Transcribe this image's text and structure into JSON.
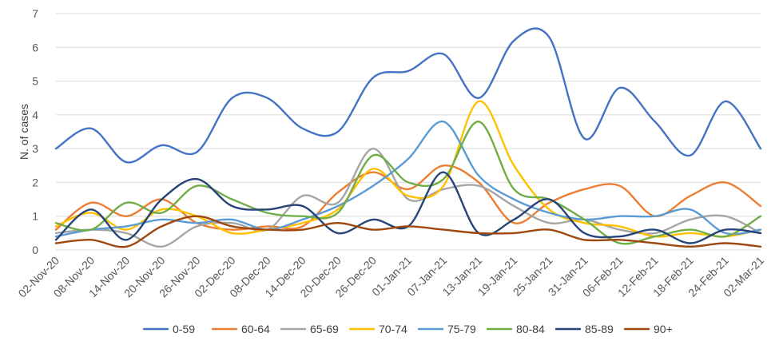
{
  "chart_data": {
    "type": "line",
    "title": "",
    "xlabel": "",
    "ylabel": "N. of cases",
    "ylim": [
      0,
      7
    ],
    "yticks": [
      "0",
      "1",
      "2",
      "3",
      "4",
      "5",
      "6",
      "7"
    ],
    "grid": "horizontal",
    "legend": "bottom",
    "categories": [
      "02-Nov-20",
      "08-Nov-20",
      "14-Nov-20",
      "20-Nov-20",
      "26-Nov-20",
      "02-Dec-20",
      "08-Dec-20",
      "14-Dec-20",
      "20-Dec-20",
      "26-Dec-20",
      "01-Jan-21",
      "07-Jan-21",
      "13-Jan-21",
      "19-Jan-21",
      "25-Jan-21",
      "31-Jan-21",
      "06-Feb-21",
      "12-Feb-21",
      "18-Feb-21",
      "24-Feb-21",
      "02-Mar-21"
    ],
    "series": [
      {
        "name": "0-59",
        "color": "#4472C4",
        "values": [
          3.0,
          3.6,
          2.6,
          3.1,
          2.9,
          4.5,
          4.5,
          3.6,
          3.5,
          5.1,
          5.3,
          5.8,
          4.5,
          6.2,
          6.3,
          3.3,
          4.8,
          3.8,
          2.8,
          4.4,
          3.0
        ]
      },
      {
        "name": "60-64",
        "color": "#ED7D31",
        "values": [
          0.6,
          1.4,
          1.0,
          1.5,
          0.8,
          0.6,
          0.7,
          0.7,
          1.7,
          2.3,
          1.8,
          2.5,
          2.0,
          0.8,
          1.4,
          1.8,
          1.9,
          1.0,
          1.6,
          2.0,
          1.3
        ]
      },
      {
        "name": "65-69",
        "color": "#A5A5A5",
        "values": [
          0.5,
          0.6,
          0.5,
          0.1,
          0.7,
          0.8,
          0.6,
          1.6,
          1.4,
          3.0,
          1.5,
          1.8,
          1.9,
          1.3,
          0.8,
          0.9,
          0.6,
          0.5,
          0.9,
          1.0,
          0.5
        ]
      },
      {
        "name": "70-74",
        "color": "#FFC000",
        "values": [
          0.7,
          1.1,
          0.6,
          1.2,
          1.0,
          0.5,
          0.6,
          0.8,
          1.2,
          2.4,
          1.6,
          1.9,
          4.4,
          2.5,
          1.2,
          0.8,
          0.7,
          0.4,
          0.5,
          0.4,
          0.6
        ]
      },
      {
        "name": "75-79",
        "color": "#5B9BD5",
        "values": [
          0.4,
          0.6,
          0.7,
          0.9,
          0.8,
          0.9,
          0.6,
          0.9,
          1.3,
          1.9,
          2.7,
          3.8,
          2.2,
          1.5,
          1.1,
          0.9,
          1.0,
          1.0,
          1.2,
          0.5,
          0.6
        ]
      },
      {
        "name": "80-84",
        "color": "#70AD47",
        "values": [
          0.8,
          0.6,
          1.4,
          1.1,
          1.9,
          1.5,
          1.1,
          1.0,
          1.1,
          2.8,
          2.0,
          2.1,
          3.8,
          1.8,
          1.5,
          0.9,
          0.2,
          0.4,
          0.6,
          0.4,
          1.0
        ]
      },
      {
        "name": "85-89",
        "color": "#264478",
        "values": [
          0.3,
          1.2,
          0.3,
          1.5,
          2.1,
          1.3,
          1.2,
          1.3,
          0.5,
          0.9,
          0.7,
          2.3,
          0.5,
          0.9,
          1.5,
          0.5,
          0.4,
          0.6,
          0.2,
          0.6,
          0.5
        ]
      },
      {
        "name": "90+",
        "color": "#9E480E",
        "values": [
          0.2,
          0.3,
          0.1,
          0.7,
          1.0,
          0.7,
          0.6,
          0.6,
          0.8,
          0.6,
          0.7,
          0.6,
          0.5,
          0.5,
          0.6,
          0.3,
          0.3,
          0.2,
          0.1,
          0.2,
          0.1
        ]
      }
    ]
  }
}
